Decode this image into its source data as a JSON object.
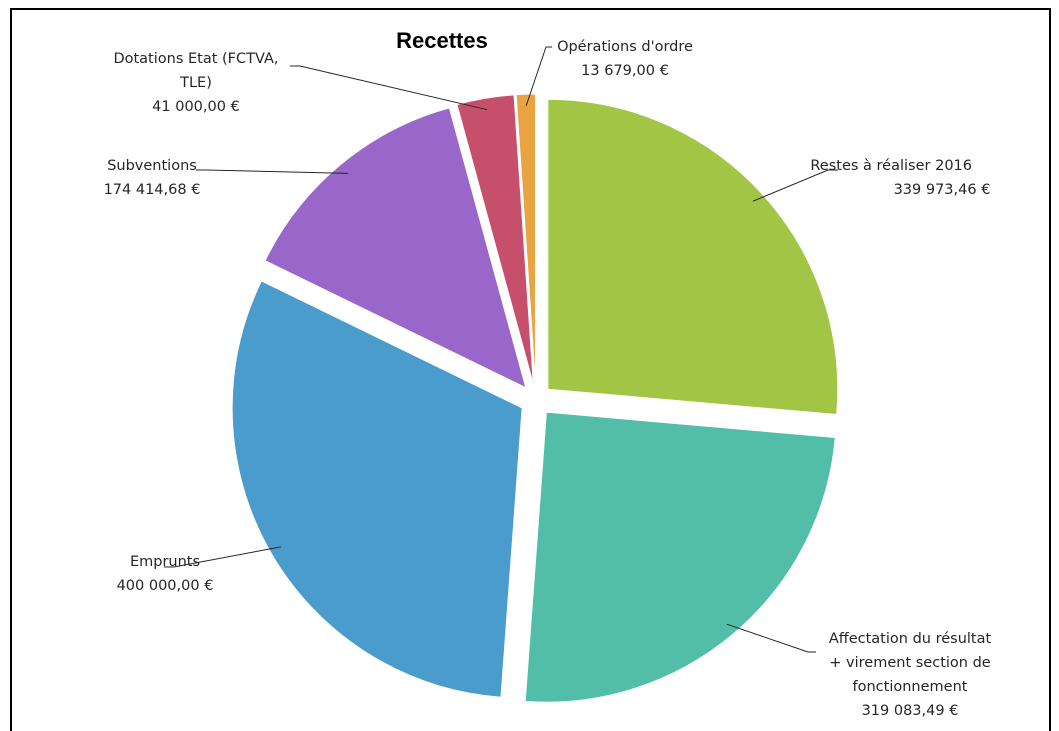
{
  "chart_data": {
    "type": "pie",
    "title": "Recettes",
    "slices": [
      {
        "label_lines": [
          "Restes à réaliser 2016"
        ],
        "value_label": "339 973,46 €",
        "value": 339973.46,
        "color": "#a3c545"
      },
      {
        "label_lines": [
          "Affectation du résultat",
          "+ virement section de",
          "fonctionnement"
        ],
        "value_label": "319 083,49 €",
        "value": 319083.49,
        "color": "#52bea7"
      },
      {
        "label_lines": [
          "Emprunts"
        ],
        "value_label": "400 000,00 €",
        "value": 400000.0,
        "color": "#4a9ccc"
      },
      {
        "label_lines": [
          "Subventions"
        ],
        "value_label": "174 414,68 €",
        "value": 174414.68,
        "color": "#9966c9"
      },
      {
        "label_lines": [
          "Dotations Etat (FCTVA,",
          "TLE)"
        ],
        "value_label": "41 000,00 €",
        "value": 41000.0,
        "color": "#c64f6c"
      },
      {
        "label_lines": [
          "Opérations d'ordre"
        ],
        "value_label": "13 679,00 €",
        "value": 13679.0,
        "color": "#e9a340"
      }
    ]
  }
}
